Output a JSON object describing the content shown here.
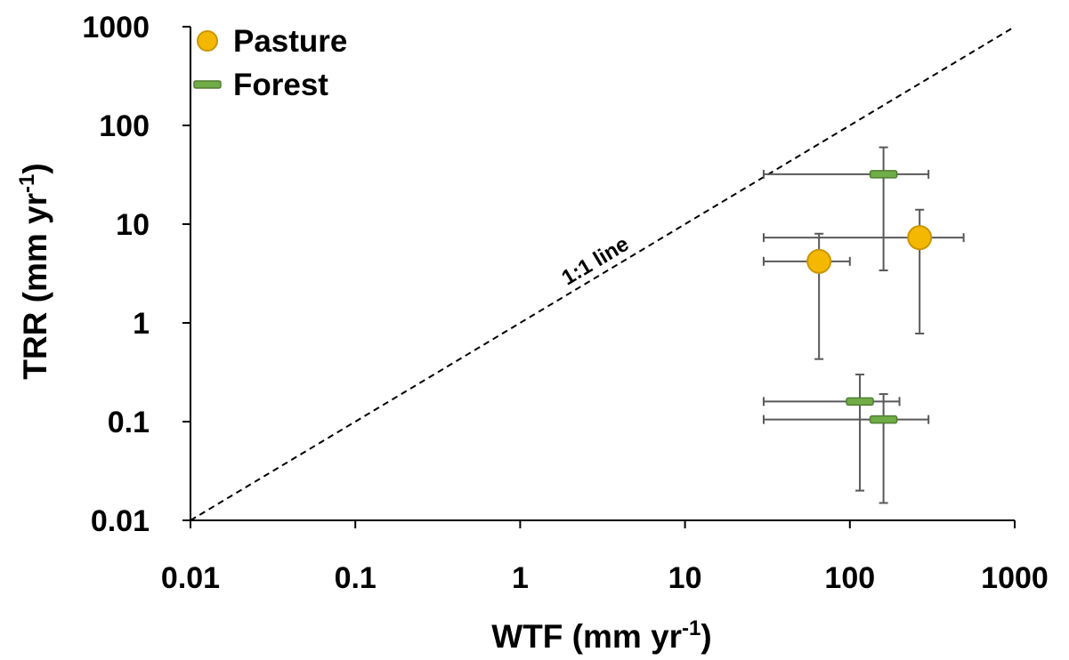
{
  "chart_data": {
    "type": "scatter",
    "title": "",
    "xlabel": "WTF (mm yr",
    "xlabel_sup": "-1",
    "xlabel_end": ")",
    "ylabel": "TRR (mm yr",
    "ylabel_sup": "-1",
    "ylabel_end": ")",
    "x_scale": "log",
    "y_scale": "log",
    "xlim": [
      0.01,
      1000
    ],
    "ylim": [
      0.01,
      1000
    ],
    "x_ticks": [
      "0.01",
      "0.1",
      "1",
      "10",
      "100",
      "1000"
    ],
    "y_ticks": [
      "0.01",
      "0.1",
      "1",
      "10",
      "100",
      "1000"
    ],
    "grid": false,
    "legend_position": "top-left",
    "reference_line": {
      "label": "1:1 line",
      "style": "dashed"
    },
    "series": [
      {
        "name": "Pasture",
        "marker": "circle",
        "color": "#f5b800",
        "points": [
          {
            "x": 65,
            "y": 4.2,
            "x_err": [
              30,
              100
            ],
            "y_err": [
              0.43,
              8.0
            ]
          },
          {
            "x": 265,
            "y": 7.3,
            "x_err": [
              30,
              490
            ],
            "y_err": [
              0.78,
              14
            ]
          }
        ]
      },
      {
        "name": "Forest",
        "marker": "dash",
        "color": "#70ad47",
        "points": [
          {
            "x": 160,
            "y": 32,
            "x_err": [
              30,
              300
            ],
            "y_err": [
              3.4,
              60
            ]
          },
          {
            "x": 115,
            "y": 0.16,
            "x_err": [
              30,
              200
            ],
            "y_err": [
              0.02,
              0.3
            ]
          },
          {
            "x": 160,
            "y": 0.105,
            "x_err": [
              30,
              300
            ],
            "y_err": [
              0.015,
              0.19
            ]
          }
        ]
      }
    ]
  },
  "colors": {
    "axis": "#000000",
    "error_bar": "#595959",
    "pasture_fill": "#f5b800",
    "pasture_stroke": "#c99700",
    "forest_fill": "#70ad47",
    "forest_stroke": "#507e32"
  }
}
